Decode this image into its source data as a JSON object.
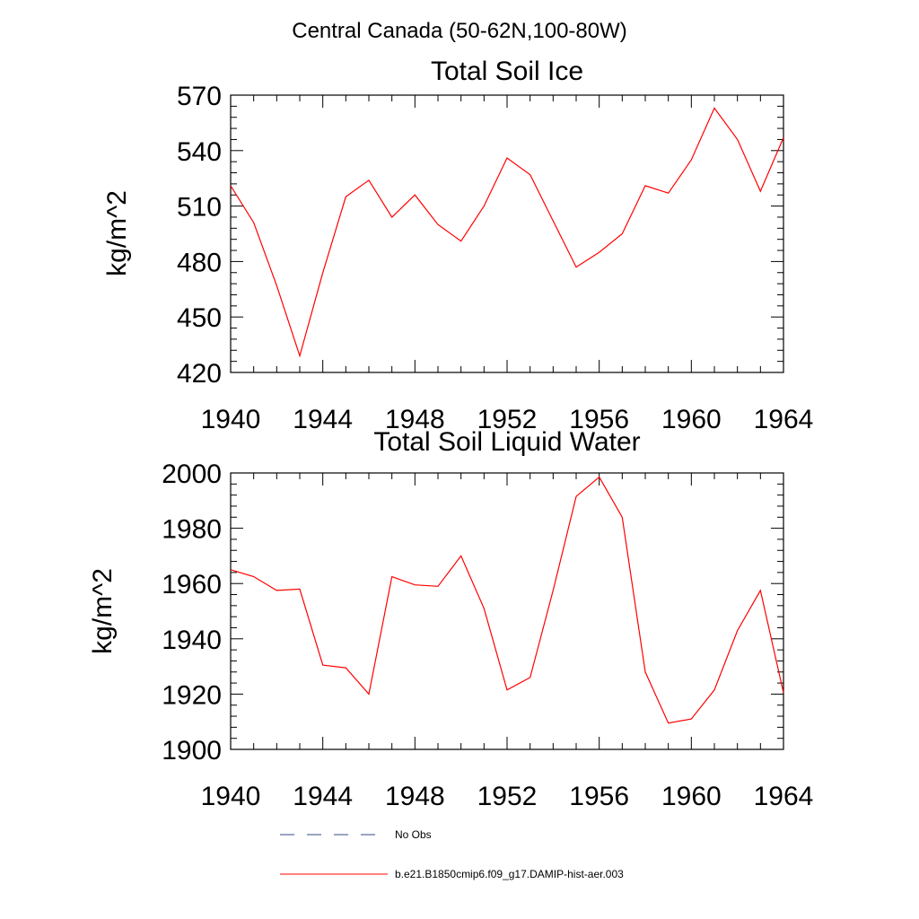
{
  "figure": {
    "suptitle": "Central Canada (50-62N,100-80W)"
  },
  "chart_data": [
    {
      "type": "line",
      "title": "Total Soil Ice",
      "xlabel": "",
      "ylabel": "kg/m^2",
      "xlim": [
        1940,
        1964
      ],
      "ylim": [
        420,
        570
      ],
      "x_ticks": [
        "1940",
        "1944",
        "1948",
        "1952",
        "1956",
        "1960",
        "1964"
      ],
      "y_ticks": [
        "420",
        "450",
        "480",
        "510",
        "540",
        "570"
      ],
      "series": [
        {
          "name": "b.e21.B1850cmip6.f09_g17.DAMIP-hist-aer.003",
          "color": "#ff0000",
          "x": [
            1940,
            1941,
            1942,
            1943,
            1944,
            1945,
            1946,
            1947,
            1948,
            1949,
            1950,
            1951,
            1952,
            1953,
            1954,
            1955,
            1956,
            1957,
            1958,
            1959,
            1960,
            1961,
            1962,
            1963,
            1964
          ],
          "y": [
            521,
            501,
            467,
            429,
            474,
            515,
            524,
            504,
            516,
            500,
            491,
            510,
            536,
            527,
            502,
            477,
            485,
            495,
            521,
            517,
            535,
            563,
            546,
            518,
            547
          ]
        }
      ]
    },
    {
      "type": "line",
      "title": "Total Soil Liquid Water",
      "xlabel": "",
      "ylabel": "kg/m^2",
      "xlim": [
        1940,
        1964
      ],
      "ylim": [
        1900,
        2000
      ],
      "x_ticks": [
        "1940",
        "1944",
        "1948",
        "1952",
        "1956",
        "1960",
        "1964"
      ],
      "y_ticks": [
        "1900",
        "1920",
        "1940",
        "1960",
        "1980",
        "2000"
      ],
      "series": [
        {
          "name": "b.e21.B1850cmip6.f09_g17.DAMIP-hist-aer.003",
          "color": "#ff0000",
          "x": [
            1940,
            1941,
            1942,
            1943,
            1944,
            1945,
            1946,
            1947,
            1948,
            1949,
            1950,
            1951,
            1952,
            1953,
            1954,
            1955,
            1956,
            1957,
            1958,
            1959,
            1960,
            1961,
            1962,
            1963,
            1964
          ],
          "y": [
            1965,
            1962.5,
            1957.5,
            1958,
            1930.5,
            1929.5,
            1920,
            1962.5,
            1959.5,
            1959,
            1970,
            1951,
            1921.5,
            1926,
            1957.5,
            1991.5,
            1998.5,
            1984,
            1928,
            1909.5,
            1911,
            1921.5,
            1943,
            1957.5,
            1920.5
          ]
        }
      ]
    }
  ],
  "legend": {
    "entries": [
      {
        "label": "No Obs",
        "style": "dashed",
        "color": "#334a80"
      },
      {
        "label": "b.e21.B1850cmip6.f09_g17.DAMIP-hist-aer.003",
        "style": "solid",
        "color": "#ff0000"
      }
    ]
  }
}
